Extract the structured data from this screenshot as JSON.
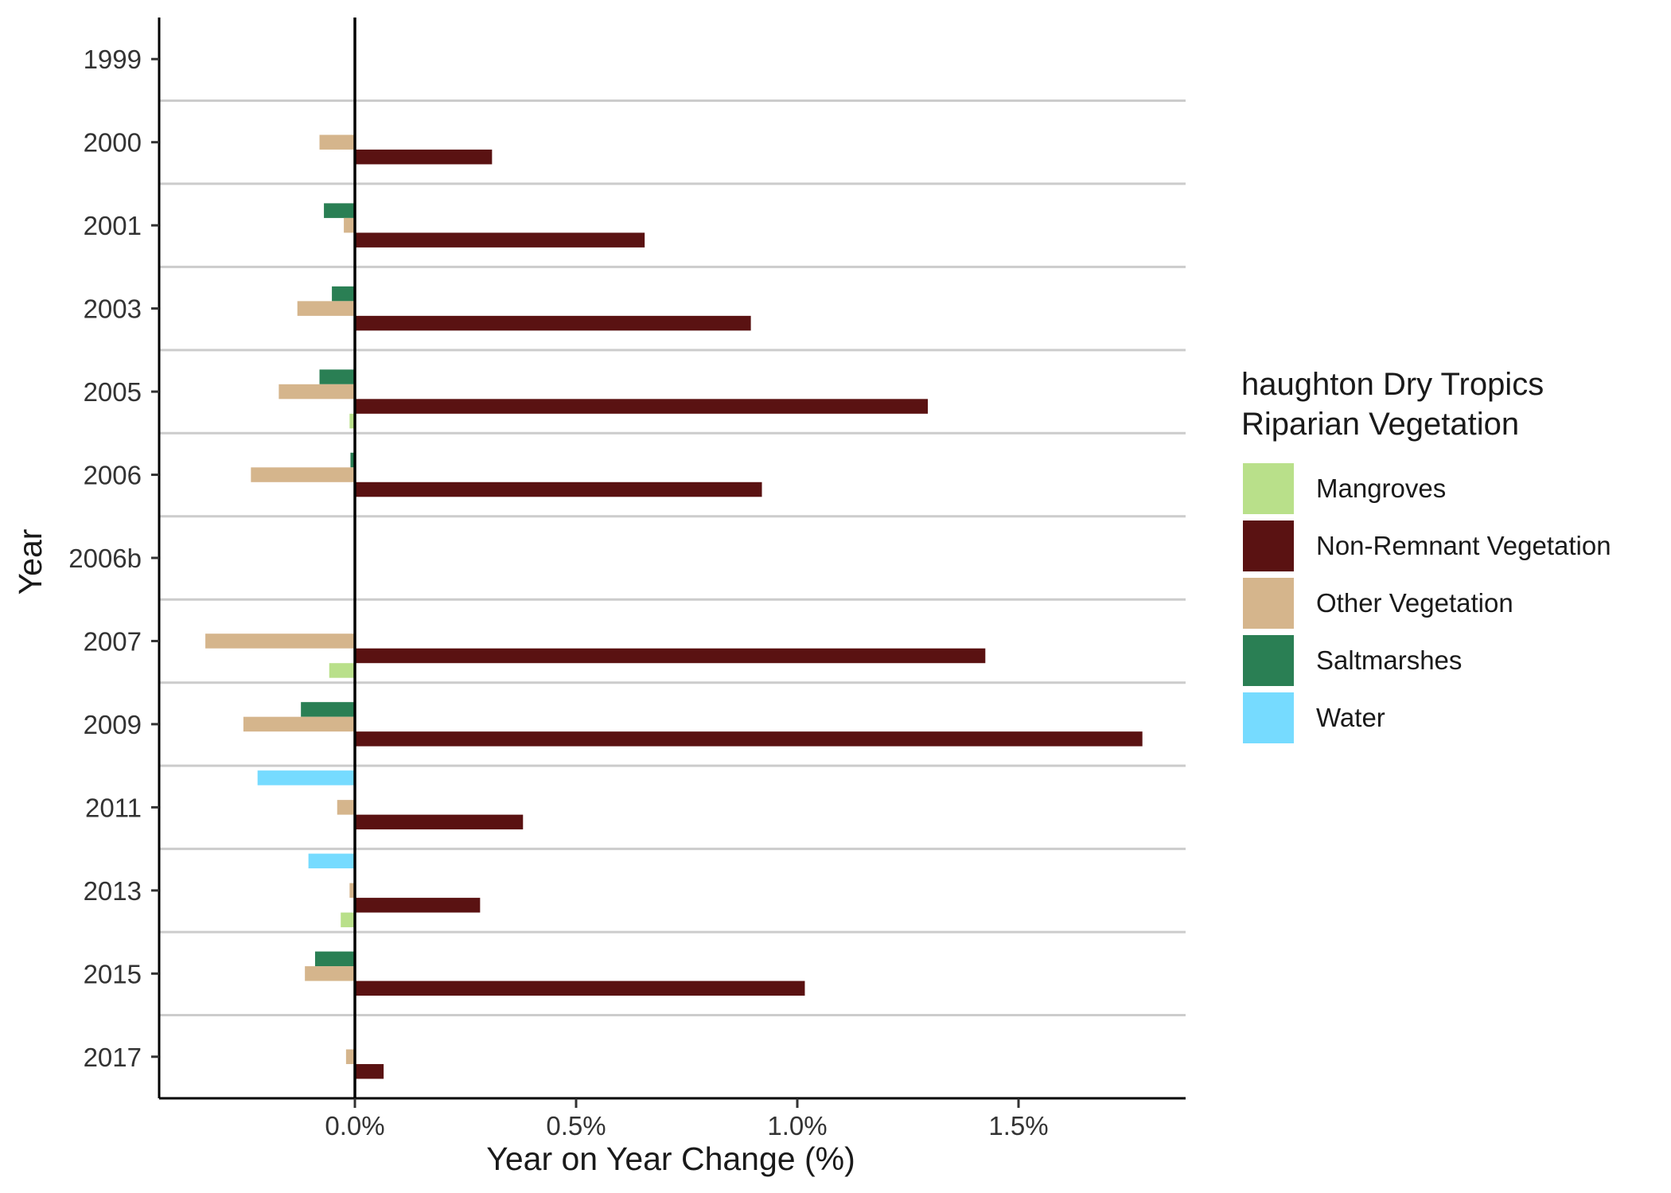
{
  "chart_data": {
    "type": "bar",
    "orientation": "horizontal",
    "ylabel": "Year",
    "xlabel": "Year on Year Change (%)",
    "categories": [
      "1999",
      "2000",
      "2001",
      "2003",
      "2005",
      "2006",
      "2006b",
      "2007",
      "2009",
      "2011",
      "2013",
      "2015",
      "2017"
    ],
    "x_ticks": [
      {
        "value": 0.0,
        "label": "0.0%"
      },
      {
        "value": 0.5,
        "label": "0.5%"
      },
      {
        "value": 1.0,
        "label": "1.0%"
      },
      {
        "value": 1.5,
        "label": "1.5%"
      }
    ],
    "xlim": [
      -0.445,
      1.885
    ],
    "grid": "horizontal separators between years",
    "legend": {
      "title_lines": [
        "haughton Dry Tropics",
        "Riparian Vegetation"
      ],
      "placement": "right"
    },
    "series": [
      {
        "name": "Water",
        "color": "#76DBFF",
        "values": [
          null,
          null,
          null,
          null,
          null,
          null,
          null,
          null,
          null,
          -0.22,
          -0.105,
          null,
          null
        ]
      },
      {
        "name": "Saltmarshes",
        "color": "#2A7F54",
        "values": [
          null,
          null,
          -0.07,
          -0.052,
          -0.08,
          -0.01,
          null,
          null,
          -0.122,
          null,
          null,
          -0.09,
          null
        ]
      },
      {
        "name": "Other Vegetation",
        "color": "#D5B58C",
        "values": [
          null,
          -0.08,
          -0.025,
          -0.13,
          -0.172,
          -0.235,
          null,
          -0.338,
          -0.252,
          -0.04,
          -0.012,
          -0.113,
          -0.02
        ]
      },
      {
        "name": "Non-Remnant Vegetation",
        "color": "#5A1212",
        "values": [
          null,
          0.31,
          0.655,
          0.895,
          1.295,
          0.92,
          null,
          1.425,
          1.78,
          0.38,
          0.283,
          1.017,
          0.065
        ]
      },
      {
        "name": "Mangroves",
        "color": "#B9E08A",
        "values": [
          null,
          null,
          null,
          null,
          -0.012,
          null,
          null,
          -0.058,
          null,
          null,
          -0.032,
          null,
          null
        ]
      }
    ]
  }
}
